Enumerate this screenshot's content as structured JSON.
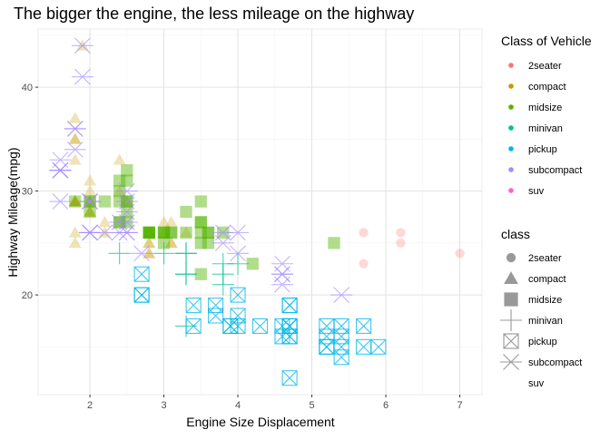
{
  "chart_data": {
    "type": "scatter",
    "title": "The bigger the engine, the less mileage on the highway",
    "xlabel": "Engine Size Displacement",
    "ylabel": "Highway Mileage(mpg)",
    "xlim": [
      1.3,
      7.3
    ],
    "ylim": [
      10.4,
      45.6
    ],
    "x_ticks": [
      2,
      3,
      4,
      5,
      6,
      7
    ],
    "y_ticks": [
      20,
      30,
      40
    ],
    "grid": true,
    "legend_position": "right",
    "legend_color": {
      "title": "Class of Vehicle",
      "entries": [
        {
          "name": "2seater",
          "color": "#F8766D"
        },
        {
          "name": "compact",
          "color": "#C49A00"
        },
        {
          "name": "midsize",
          "color": "#53B400"
        },
        {
          "name": "minivan",
          "color": "#00C094"
        },
        {
          "name": "pickup",
          "color": "#00B6EB"
        },
        {
          "name": "subcompact",
          "color": "#A58AFF"
        },
        {
          "name": "suv",
          "color": "#FB61D7"
        }
      ]
    },
    "legend_shape": {
      "title": "class",
      "entries": [
        {
          "name": "2seater",
          "shape": "circle"
        },
        {
          "name": "compact",
          "shape": "triangle"
        },
        {
          "name": "midsize",
          "shape": "square"
        },
        {
          "name": "minivan",
          "shape": "plus"
        },
        {
          "name": "pickup",
          "shape": "square-cross"
        },
        {
          "name": "subcompact",
          "shape": "asterisk"
        },
        {
          "name": "suv",
          "shape": "none"
        }
      ]
    },
    "series": [
      {
        "name": "2seater",
        "points": [
          [
            5.7,
            26
          ],
          [
            5.7,
            23
          ],
          [
            6.2,
            26
          ],
          [
            6.2,
            25
          ],
          [
            7.0,
            24
          ]
        ]
      },
      {
        "name": "compact",
        "points": [
          [
            1.8,
            29
          ],
          [
            1.8,
            29
          ],
          [
            2.0,
            31
          ],
          [
            2.0,
            30
          ],
          [
            2.8,
            26
          ],
          [
            2.8,
            26
          ],
          [
            3.1,
            27
          ],
          [
            1.8,
            26
          ],
          [
            1.8,
            25
          ],
          [
            2.0,
            28
          ],
          [
            2.0,
            28
          ],
          [
            2.8,
            25
          ],
          [
            2.8,
            25
          ],
          [
            3.1,
            25
          ],
          [
            3.1,
            25
          ],
          [
            2.2,
            26
          ],
          [
            2.2,
            27
          ],
          [
            2.4,
            30
          ],
          [
            2.4,
            33
          ],
          [
            3.0,
            26
          ],
          [
            3.0,
            27
          ],
          [
            3.3,
            26
          ],
          [
            1.8,
            35
          ],
          [
            1.8,
            37
          ],
          [
            1.8,
            35
          ],
          [
            1.8,
            29
          ],
          [
            1.8,
            33
          ],
          [
            1.9,
            44
          ],
          [
            2.0,
            29
          ],
          [
            2.0,
            29
          ],
          [
            2.5,
            29
          ],
          [
            2.5,
            29
          ],
          [
            2.8,
            24
          ],
          [
            2.8,
            24
          ],
          [
            1.8,
            29
          ],
          [
            1.8,
            29
          ],
          [
            2.0,
            28
          ],
          [
            2.0,
            29
          ]
        ]
      },
      {
        "name": "midsize",
        "points": [
          [
            2.8,
            26
          ],
          [
            3.1,
            26
          ],
          [
            4.2,
            23
          ],
          [
            2.4,
            27
          ],
          [
            2.4,
            30
          ],
          [
            3.1,
            26
          ],
          [
            3.5,
            29
          ],
          [
            3.6,
            26
          ],
          [
            2.4,
            29
          ],
          [
            3.0,
            26
          ],
          [
            3.3,
            28
          ],
          [
            3.8,
            26
          ],
          [
            2.5,
            29
          ],
          [
            2.5,
            28
          ],
          [
            3.5,
            26
          ],
          [
            5.3,
            25
          ],
          [
            2.4,
            31
          ],
          [
            2.5,
            27
          ],
          [
            3.0,
            26
          ],
          [
            3.5,
            27
          ],
          [
            3.5,
            25
          ],
          [
            2.5,
            32
          ],
          [
            2.5,
            31
          ],
          [
            2.8,
            26
          ],
          [
            2.8,
            26
          ],
          [
            3.0,
            26
          ],
          [
            3.0,
            25
          ],
          [
            2.0,
            29
          ],
          [
            2.0,
            28
          ],
          [
            2.2,
            29
          ],
          [
            2.4,
            27
          ],
          [
            2.8,
            26
          ],
          [
            3.3,
            26
          ],
          [
            3.5,
            22
          ],
          [
            3.5,
            27
          ],
          [
            1.8,
            29
          ],
          [
            2.5,
            29
          ],
          [
            2.8,
            26
          ],
          [
            3.6,
            25
          ],
          [
            3.6,
            26
          ],
          [
            2.0,
            29
          ]
        ]
      },
      {
        "name": "minivan",
        "points": [
          [
            2.4,
            24
          ],
          [
            3.0,
            24
          ],
          [
            3.3,
            22
          ],
          [
            3.3,
            22
          ],
          [
            3.3,
            24
          ],
          [
            3.3,
            24
          ],
          [
            3.3,
            17
          ],
          [
            3.8,
            22
          ],
          [
            3.8,
            21
          ],
          [
            3.8,
            23
          ],
          [
            4.0,
            23
          ]
        ]
      },
      {
        "name": "pickup",
        "points": [
          [
            3.7,
            19
          ],
          [
            3.7,
            18
          ],
          [
            3.9,
            17
          ],
          [
            3.9,
            17
          ],
          [
            4.7,
            19
          ],
          [
            4.7,
            16
          ],
          [
            4.7,
            12
          ],
          [
            5.2,
            17
          ],
          [
            5.2,
            15
          ],
          [
            5.7,
            17
          ],
          [
            5.9,
            15
          ],
          [
            4.7,
            17
          ],
          [
            4.7,
            17
          ],
          [
            4.7,
            16
          ],
          [
            5.2,
            15
          ],
          [
            5.2,
            16
          ],
          [
            2.7,
            20
          ],
          [
            2.7,
            20
          ],
          [
            2.7,
            22
          ],
          [
            3.4,
            17
          ],
          [
            3.4,
            19
          ],
          [
            4.0,
            18
          ],
          [
            4.0,
            20
          ],
          [
            4.7,
            17
          ],
          [
            4.7,
            19
          ],
          [
            5.7,
            15
          ],
          [
            4.3,
            17
          ],
          [
            5.4,
            17
          ],
          [
            5.4,
            15
          ],
          [
            5.4,
            16
          ],
          [
            4.0,
            17
          ],
          [
            4.6,
            17
          ],
          [
            4.6,
            16
          ],
          [
            5.4,
            14
          ]
        ]
      },
      {
        "name": "subcompact",
        "points": [
          [
            3.8,
            26
          ],
          [
            3.8,
            25
          ],
          [
            4.0,
            26
          ],
          [
            4.0,
            24
          ],
          [
            4.6,
            21
          ],
          [
            4.6,
            22
          ],
          [
            4.6,
            23
          ],
          [
            4.6,
            22
          ],
          [
            5.4,
            20
          ],
          [
            1.6,
            33
          ],
          [
            1.6,
            32
          ],
          [
            1.6,
            32
          ],
          [
            1.6,
            29
          ],
          [
            1.6,
            32
          ],
          [
            1.8,
            34
          ],
          [
            1.8,
            36
          ],
          [
            1.8,
            36
          ],
          [
            2.0,
            29
          ],
          [
            2.4,
            26
          ],
          [
            2.4,
            27
          ],
          [
            2.5,
            30
          ],
          [
            2.5,
            28
          ],
          [
            2.5,
            26
          ],
          [
            2.5,
            29
          ],
          [
            2.5,
            26
          ],
          [
            1.9,
            41
          ],
          [
            1.9,
            44
          ],
          [
            2.0,
            26
          ],
          [
            2.0,
            29
          ],
          [
            2.0,
            26
          ],
          [
            2.5,
            27
          ],
          [
            2.7,
            24
          ],
          [
            2.0,
            29
          ],
          [
            2.0,
            26
          ],
          [
            2.2,
            26
          ]
        ]
      },
      {
        "name": "suv",
        "points": []
      }
    ]
  }
}
